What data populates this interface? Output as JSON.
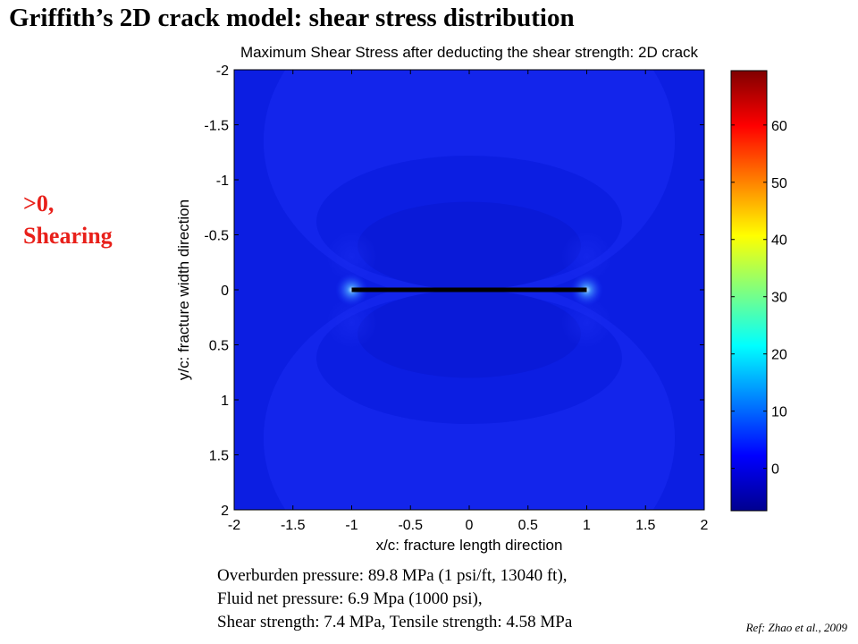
{
  "slide": {
    "title": "Griffith’s 2D crack model: shear stress distribution",
    "side_note_line1": ">0,",
    "side_note_line2": "Shearing",
    "params": [
      "Overburden pressure: 89.8 MPa (1 psi/ft, 13040 ft),",
      "Fluid net pressure: 6.9 Mpa (1000 psi),",
      "Shear strength: 7.4 MPa, Tensile strength: 4.58 MPa"
    ],
    "ref": "Ref: Zhao et al., 2009"
  },
  "chart_data": {
    "type": "heatmap",
    "title": "Maximum Shear Stress after deducting the shear strength: 2D crack",
    "xlabel": "x/c: fracture length direction",
    "ylabel": "y/c: fracture width direction",
    "xlim": [
      -2,
      2
    ],
    "ylim": [
      -2,
      2
    ],
    "y_reversed": true,
    "xticks": [
      -2,
      -1.5,
      -1,
      -0.5,
      0,
      0.5,
      1,
      1.5,
      2
    ],
    "yticks": [
      -2,
      -1.5,
      -1,
      -0.5,
      0,
      0.5,
      1,
      1.5,
      2
    ],
    "xtick_labels": [
      "-2",
      "-1.5",
      "-1",
      "-0.5",
      "0",
      "0.5",
      "1",
      "1.5",
      "2"
    ],
    "ytick_labels": [
      "-2",
      "-1.5",
      "-1",
      "-0.5",
      "0",
      "0.5",
      "1",
      "1.5",
      "2"
    ],
    "crack": {
      "x_start": -1,
      "x_end": 1,
      "y": 0,
      "color": "#000000"
    },
    "colorbar": {
      "colormap": "jet",
      "range": [
        -7.4,
        69.5
      ],
      "ticks": [
        0,
        10,
        20,
        30,
        40,
        50,
        60
      ],
      "tick_labels": [
        "0",
        "10",
        "20",
        "30",
        "40",
        "50",
        "60"
      ]
    },
    "background_color": "#0c1ee2"
  }
}
